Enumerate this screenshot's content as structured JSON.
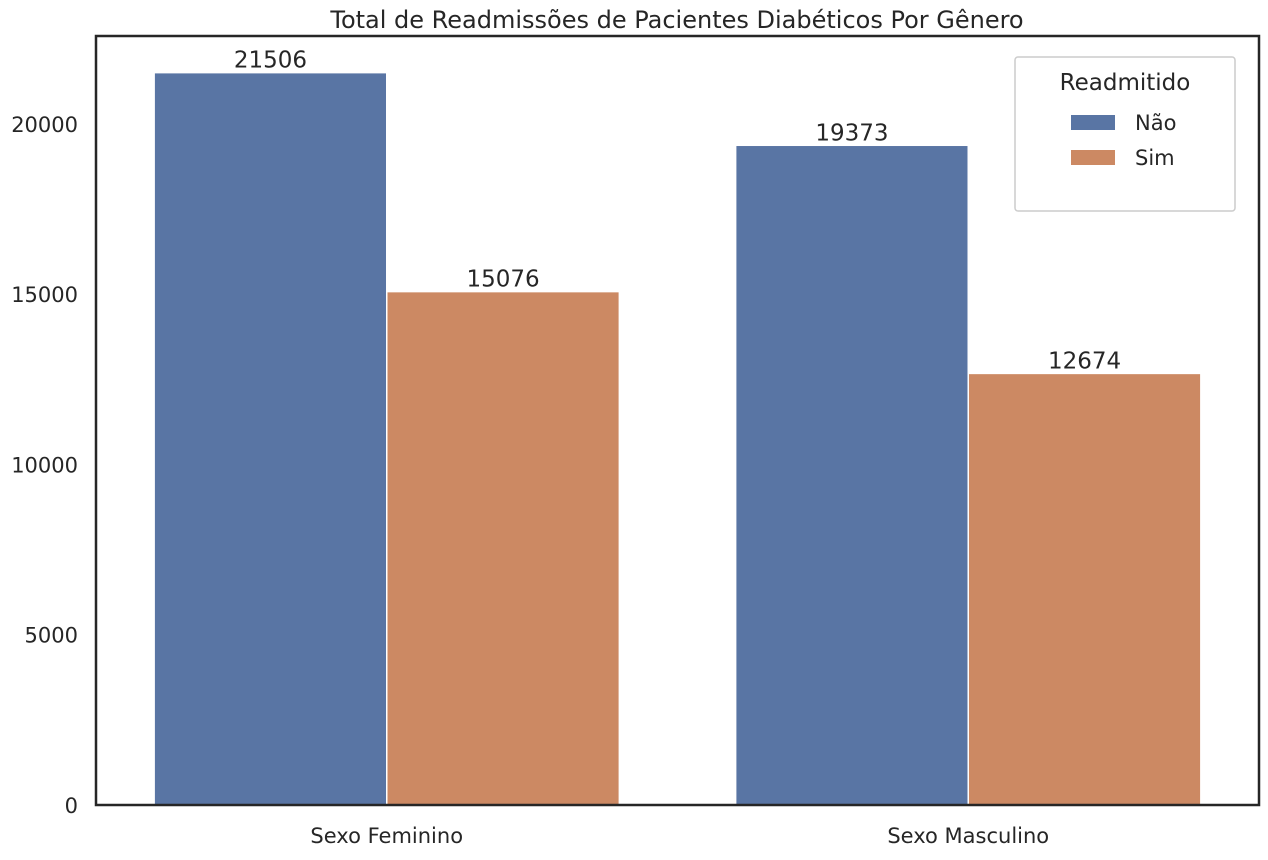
{
  "chart_data": {
    "type": "bar",
    "title": "Total de Readmissões de Pacientes Diabéticos Por Gênero",
    "xlabel": "",
    "ylabel": "",
    "categories": [
      "Sexo Feminino",
      "Sexo Masculino"
    ],
    "series": [
      {
        "name": "Não",
        "values": [
          21506,
          19373
        ],
        "color": "#5975a4"
      },
      {
        "name": "Sim",
        "values": [
          15076,
          12674
        ],
        "color": "#cc8963"
      }
    ],
    "yticks": [
      0,
      5000,
      10000,
      15000,
      20000
    ],
    "ylim": [
      0,
      22582
    ],
    "grid": false,
    "legend": {
      "title": "Readmitido",
      "placement": "top-right"
    }
  }
}
